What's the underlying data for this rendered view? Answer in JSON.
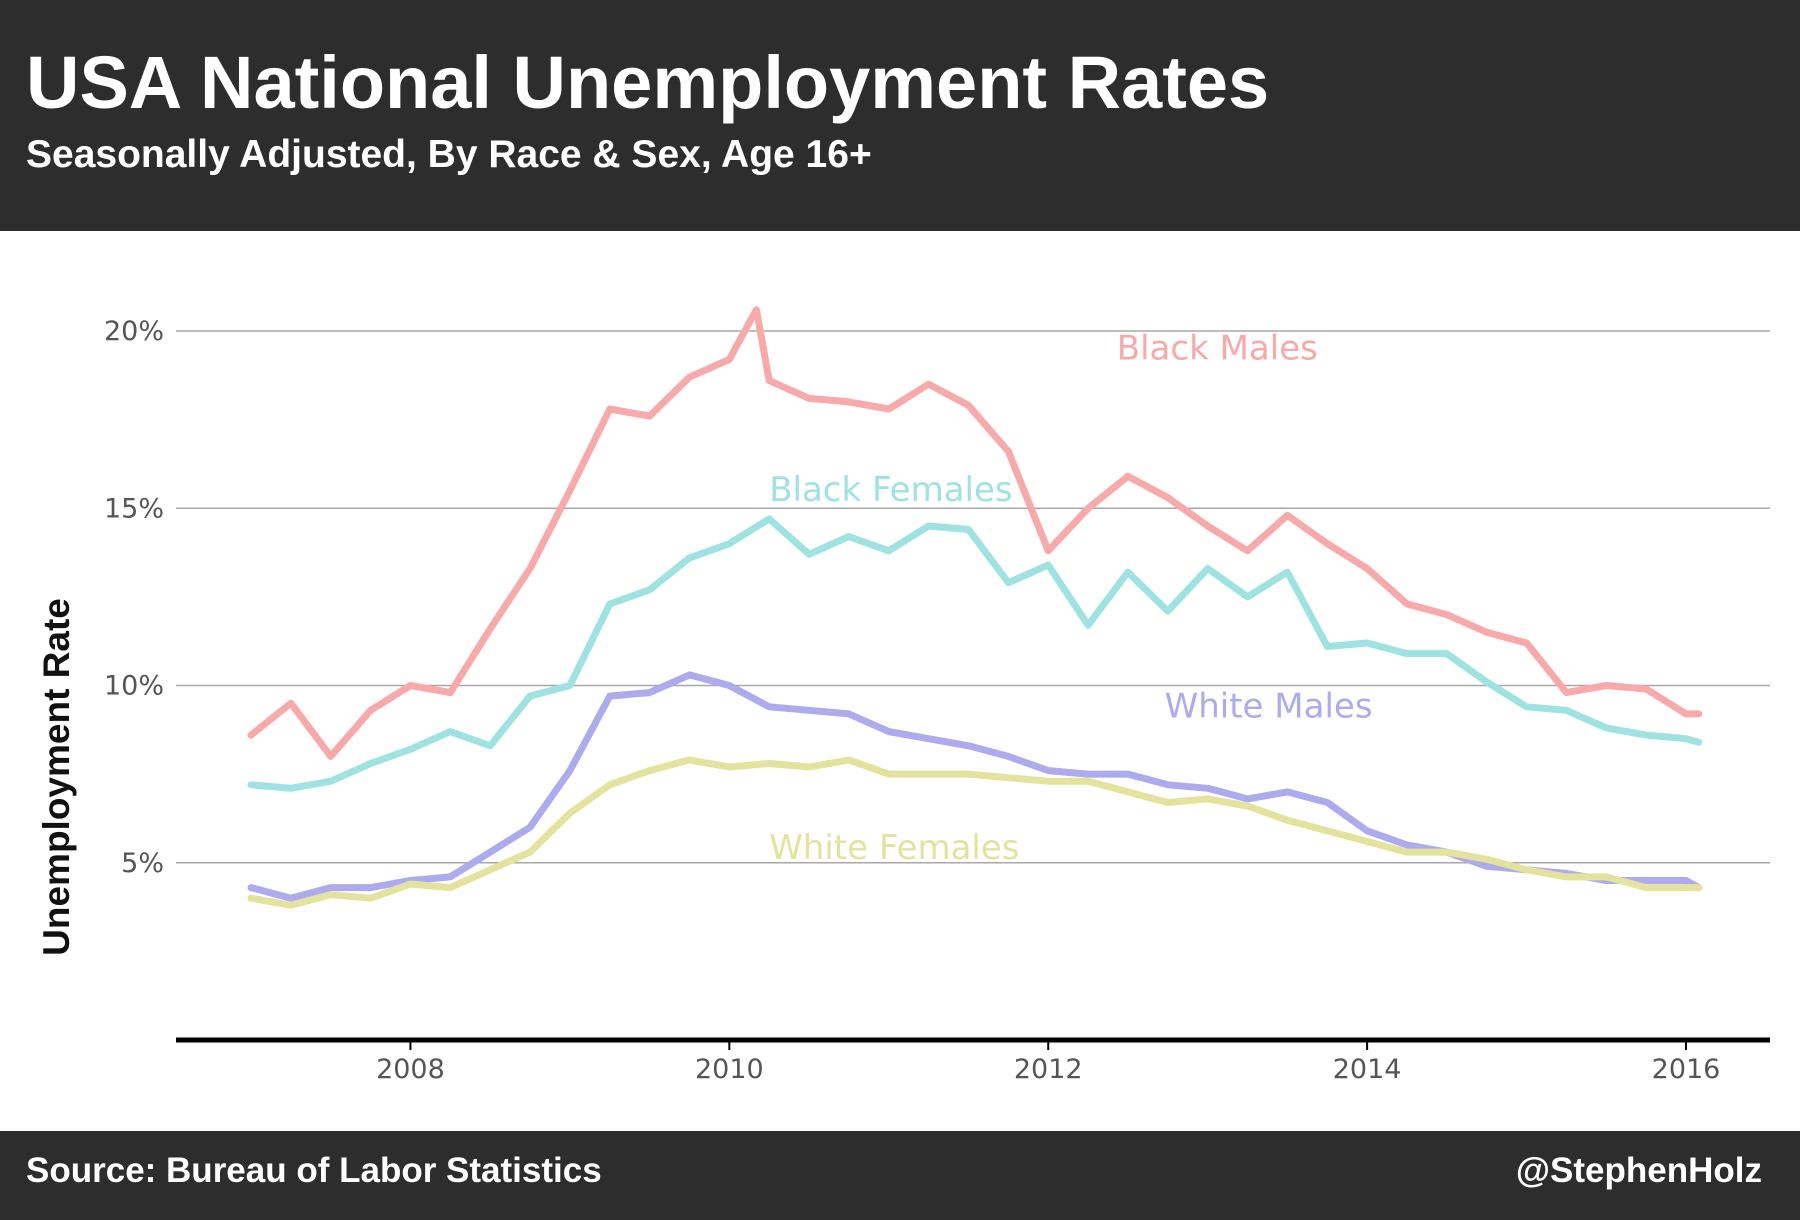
{
  "header": {
    "title": "USA National Unemployment Rates",
    "subtitle": "Seasonally Adjusted, By Race & Sex, Age 16+"
  },
  "footer": {
    "source": "Source: Bureau of Labor Statistics",
    "credit": "@StephenHolz"
  },
  "chart_data": {
    "type": "line",
    "title": "USA National Unemployment Rates",
    "subtitle": "Seasonally Adjusted, By Race & Sex, Age 16+",
    "ylabel": "Unemployment Rate",
    "xlabel": "",
    "xlim": [
      2006.67,
      2016.75
    ],
    "ylim": [
      0,
      21.5
    ],
    "x_ticks": [
      2008,
      2010,
      2012,
      2014,
      2016
    ],
    "y_ticks": [
      5,
      10,
      15,
      20
    ],
    "y_tick_labels": [
      "5%",
      "10%",
      "15%",
      "20%"
    ],
    "grid": "horizontal",
    "legend": "inline labels",
    "series": [
      {
        "name": "Black Males",
        "color": "#f8a9a9",
        "x": [
          2007.0,
          2007.25,
          2007.5,
          2007.75,
          2008.0,
          2008.25,
          2008.5,
          2008.75,
          2009.0,
          2009.25,
          2009.5,
          2009.75,
          2010.0,
          2010.17,
          2010.25,
          2010.5,
          2010.75,
          2011.0,
          2011.25,
          2011.5,
          2011.75,
          2012.0,
          2012.25,
          2012.5,
          2012.75,
          2013.0,
          2013.25,
          2013.5,
          2013.75,
          2014.0,
          2014.25,
          2014.5,
          2014.75,
          2015.0,
          2015.25,
          2015.5,
          2015.75,
          2016.0,
          2016.08
        ],
        "values": [
          8.6,
          9.5,
          8.0,
          9.3,
          10.0,
          9.8,
          11.6,
          13.3,
          15.5,
          17.8,
          17.6,
          18.7,
          19.2,
          20.6,
          18.6,
          18.1,
          18.0,
          17.8,
          18.5,
          17.9,
          16.6,
          13.8,
          15.0,
          15.9,
          15.3,
          14.5,
          13.8,
          14.8,
          14.0,
          13.3,
          12.3,
          12.0,
          11.5,
          11.2,
          9.8,
          10.0,
          9.9,
          9.2,
          9.2
        ]
      },
      {
        "name": "Black Females",
        "color": "#9ee3e1",
        "x": [
          2007.0,
          2007.25,
          2007.5,
          2007.75,
          2008.0,
          2008.25,
          2008.5,
          2008.75,
          2009.0,
          2009.25,
          2009.5,
          2009.75,
          2010.0,
          2010.25,
          2010.5,
          2010.75,
          2011.0,
          2011.25,
          2011.5,
          2011.75,
          2012.0,
          2012.25,
          2012.5,
          2012.75,
          2013.0,
          2013.25,
          2013.5,
          2013.75,
          2014.0,
          2014.25,
          2014.5,
          2014.75,
          2015.0,
          2015.25,
          2015.5,
          2015.75,
          2016.0,
          2016.08
        ],
        "values": [
          7.2,
          7.1,
          7.3,
          7.8,
          8.2,
          8.7,
          8.3,
          9.7,
          10.0,
          12.3,
          12.7,
          13.6,
          14.0,
          14.7,
          13.7,
          14.2,
          13.8,
          14.5,
          14.4,
          12.9,
          13.4,
          11.7,
          13.2,
          12.1,
          13.3,
          12.5,
          13.2,
          11.1,
          11.2,
          10.9,
          10.9,
          10.1,
          9.4,
          9.3,
          8.8,
          8.6,
          8.5,
          8.4
        ]
      },
      {
        "name": "White Males",
        "color": "#adabed",
        "x": [
          2007.0,
          2007.25,
          2007.5,
          2007.75,
          2008.0,
          2008.25,
          2008.5,
          2008.75,
          2009.0,
          2009.25,
          2009.5,
          2009.75,
          2010.0,
          2010.25,
          2010.5,
          2010.75,
          2011.0,
          2011.25,
          2011.5,
          2011.75,
          2012.0,
          2012.25,
          2012.5,
          2012.75,
          2013.0,
          2013.25,
          2013.5,
          2013.75,
          2014.0,
          2014.25,
          2014.5,
          2014.75,
          2015.0,
          2015.25,
          2015.5,
          2015.75,
          2016.0,
          2016.08
        ],
        "values": [
          4.3,
          4.0,
          4.3,
          4.3,
          4.5,
          4.6,
          5.3,
          6.0,
          7.6,
          9.7,
          9.8,
          10.3,
          10.0,
          9.4,
          9.3,
          9.2,
          8.7,
          8.5,
          8.3,
          8.0,
          7.6,
          7.5,
          7.5,
          7.2,
          7.1,
          6.8,
          7.0,
          6.7,
          5.9,
          5.5,
          5.3,
          4.9,
          4.8,
          4.7,
          4.5,
          4.5,
          4.5,
          4.3
        ]
      },
      {
        "name": "White Females",
        "color": "#e3e39e",
        "x": [
          2007.0,
          2007.25,
          2007.5,
          2007.75,
          2008.0,
          2008.25,
          2008.5,
          2008.75,
          2009.0,
          2009.25,
          2009.5,
          2009.75,
          2010.0,
          2010.25,
          2010.5,
          2010.75,
          2011.0,
          2011.25,
          2011.5,
          2011.75,
          2012.0,
          2012.25,
          2012.5,
          2012.75,
          2013.0,
          2013.25,
          2013.5,
          2013.75,
          2014.0,
          2014.25,
          2014.5,
          2014.75,
          2015.0,
          2015.25,
          2015.5,
          2015.75,
          2016.0,
          2016.08
        ],
        "values": [
          4.0,
          3.8,
          4.1,
          4.0,
          4.4,
          4.3,
          4.8,
          5.3,
          6.4,
          7.2,
          7.6,
          7.9,
          7.7,
          7.8,
          7.7,
          7.9,
          7.5,
          7.5,
          7.5,
          7.4,
          7.3,
          7.3,
          7.0,
          6.7,
          6.8,
          6.6,
          6.2,
          5.9,
          5.6,
          5.3,
          5.3,
          5.1,
          4.8,
          4.6,
          4.6,
          4.3,
          4.3,
          4.3
        ]
      }
    ],
    "annotations": [
      {
        "text": "Black Males",
        "series": "Black Males",
        "x": 2012.43,
        "y": 19.2
      },
      {
        "text": "Black Females",
        "series": "Black Females",
        "x": 2010.25,
        "y": 15.2
      },
      {
        "text": "White Males",
        "series": "White Males",
        "x": 2012.73,
        "y": 9.1
      },
      {
        "text": "White Females",
        "series": "White Females",
        "x": 2010.25,
        "y": 5.1
      }
    ]
  }
}
